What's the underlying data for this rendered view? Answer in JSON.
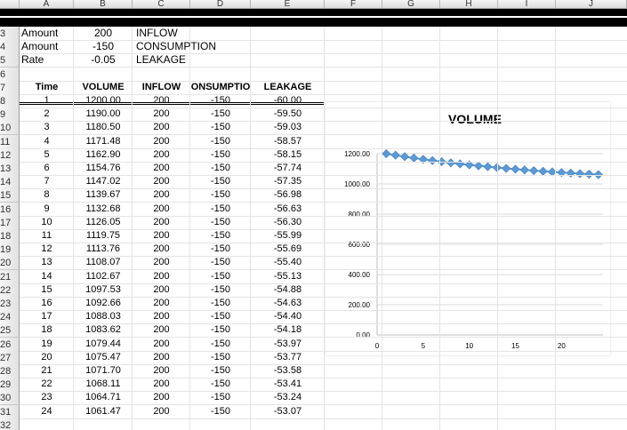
{
  "columns": [
    "A",
    "B",
    "C",
    "D",
    "E",
    "F",
    "G",
    "H",
    "I",
    "J"
  ],
  "row_numbers": [
    "3",
    "4",
    "5",
    "6",
    "7",
    "8",
    "9",
    "10",
    "11",
    "12",
    "13",
    "14",
    "15",
    "16",
    "17",
    "18",
    "19",
    "20",
    "21",
    "22",
    "23",
    "24",
    "25",
    "26",
    "27",
    "28",
    "29",
    "30",
    "31",
    "32"
  ],
  "params": [
    {
      "label": "Amount",
      "value": "200",
      "name": "INFLOW"
    },
    {
      "label": "Amount",
      "value": "-150",
      "name": "CONSUMPTION"
    },
    {
      "label": "Rate",
      "value": "-0.05",
      "name": "LEAKAGE"
    }
  ],
  "table": {
    "headers": [
      "Time",
      "VOLUME",
      "INFLOW",
      "ONSUMPTIO",
      "LEAKAGE"
    ],
    "rows": [
      [
        "1",
        "1200.00",
        "200",
        "-150",
        "-60.00"
      ],
      [
        "2",
        "1190.00",
        "200",
        "-150",
        "-59.50"
      ],
      [
        "3",
        "1180.50",
        "200",
        "-150",
        "-59.03"
      ],
      [
        "4",
        "1171.48",
        "200",
        "-150",
        "-58.57"
      ],
      [
        "5",
        "1162.90",
        "200",
        "-150",
        "-58.15"
      ],
      [
        "6",
        "1154.76",
        "200",
        "-150",
        "-57.74"
      ],
      [
        "7",
        "1147.02",
        "200",
        "-150",
        "-57.35"
      ],
      [
        "8",
        "1139.67",
        "200",
        "-150",
        "-56.98"
      ],
      [
        "9",
        "1132.68",
        "200",
        "-150",
        "-56.63"
      ],
      [
        "10",
        "1126.05",
        "200",
        "-150",
        "-56.30"
      ],
      [
        "11",
        "1119.75",
        "200",
        "-150",
        "-55.99"
      ],
      [
        "12",
        "1113.76",
        "200",
        "-150",
        "-55.69"
      ],
      [
        "13",
        "1108.07",
        "200",
        "-150",
        "-55.40"
      ],
      [
        "14",
        "1102.67",
        "200",
        "-150",
        "-55.13"
      ],
      [
        "15",
        "1097.53",
        "200",
        "-150",
        "-54.88"
      ],
      [
        "16",
        "1092.66",
        "200",
        "-150",
        "-54.63"
      ],
      [
        "17",
        "1088.03",
        "200",
        "-150",
        "-54.40"
      ],
      [
        "18",
        "1083.62",
        "200",
        "-150",
        "-54.18"
      ],
      [
        "19",
        "1079.44",
        "200",
        "-150",
        "-53.97"
      ],
      [
        "20",
        "1075.47",
        "200",
        "-150",
        "-53.77"
      ],
      [
        "21",
        "1071.70",
        "200",
        "-150",
        "-53.58"
      ],
      [
        "22",
        "1068.11",
        "200",
        "-150",
        "-53.41"
      ],
      [
        "23",
        "1064.71",
        "200",
        "-150",
        "-53.24"
      ],
      [
        "24",
        "1061.47",
        "200",
        "-150",
        "-53.07"
      ]
    ]
  },
  "chart_data": {
    "type": "line",
    "title": "VOLUME",
    "x": [
      1,
      2,
      3,
      4,
      5,
      6,
      7,
      8,
      9,
      10,
      11,
      12,
      13,
      14,
      15,
      16,
      17,
      18,
      19,
      20,
      21,
      22,
      23,
      24
    ],
    "series": [
      {
        "values": [
          1200.0,
          1190.0,
          1180.5,
          1171.48,
          1162.9,
          1154.76,
          1147.02,
          1139.67,
          1132.68,
          1126.05,
          1119.75,
          1113.76,
          1108.07,
          1102.67,
          1097.53,
          1092.66,
          1088.03,
          1083.62,
          1079.44,
          1075.47,
          1071.7,
          1068.11,
          1064.71,
          1061.47
        ],
        "color": "#5b9bd5"
      }
    ],
    "ylim": [
      0,
      1200
    ],
    "xlim": [
      0,
      24.5
    ],
    "yticks": [
      "0.00",
      "200.00",
      "400.00",
      "600.00",
      "800.00",
      "1000.00",
      "1200.00"
    ],
    "xticks": [
      "0",
      "5",
      "10",
      "15",
      "20"
    ],
    "grid": true
  }
}
